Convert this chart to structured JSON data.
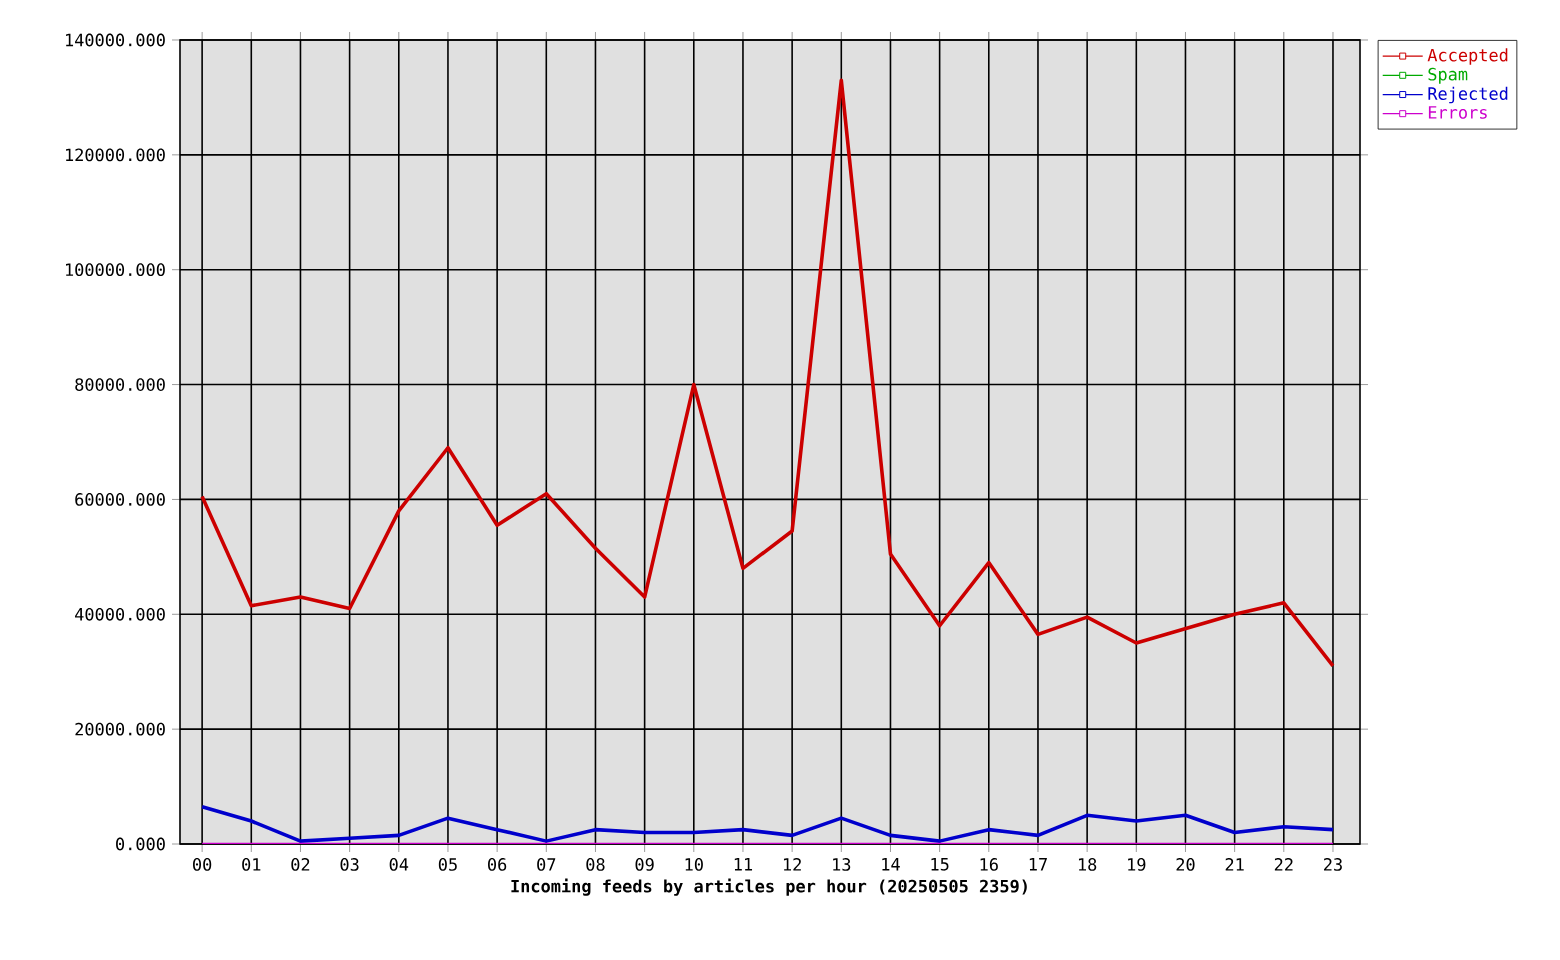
{
  "chart_data": {
    "type": "line",
    "xlabel": "Incoming feeds by articles per hour (20250505 2359)",
    "categories": [
      "00",
      "01",
      "02",
      "03",
      "04",
      "05",
      "06",
      "07",
      "08",
      "09",
      "10",
      "11",
      "12",
      "13",
      "14",
      "15",
      "16",
      "17",
      "18",
      "19",
      "20",
      "21",
      "22",
      "23"
    ],
    "series": [
      {
        "name": "Accepted",
        "color": "#cc0000",
        "values": [
          60500,
          41500,
          43000,
          41000,
          58000,
          69000,
          55500,
          61000,
          51500,
          43000,
          80000,
          48000,
          54500,
          133000,
          50500,
          38000,
          49000,
          36500,
          39500,
          35000,
          37500,
          40000,
          42000,
          31000
        ]
      },
      {
        "name": "Spam",
        "color": "#00aa00",
        "values": [
          null,
          null,
          null,
          null,
          null,
          null,
          null,
          null,
          null,
          null,
          null,
          null,
          null,
          null,
          null,
          null,
          null,
          null,
          null,
          null,
          null,
          null,
          null,
          null
        ]
      },
      {
        "name": "Rejected",
        "color": "#0000cc",
        "values": [
          6500,
          4000,
          500,
          1000,
          1500,
          4500,
          2500,
          500,
          2500,
          2000,
          2000,
          2500,
          1500,
          4500,
          1500,
          500,
          2500,
          1500,
          5000,
          4000,
          5000,
          2000,
          3000,
          2500
        ]
      },
      {
        "name": "Errors",
        "color": "#cc00cc",
        "values": [
          0,
          0,
          0,
          0,
          0,
          0,
          0,
          0,
          0,
          0,
          0,
          0,
          0,
          0,
          0,
          0,
          0,
          0,
          0,
          0,
          0,
          0,
          0,
          0
        ]
      }
    ],
    "ylim": [
      0,
      140000
    ],
    "yticks": [
      {
        "value": 0,
        "label": "0.000"
      },
      {
        "value": 20000,
        "label": "20000.000"
      },
      {
        "value": 40000,
        "label": "40000.000"
      },
      {
        "value": 60000,
        "label": "60000.000"
      },
      {
        "value": 80000,
        "label": "80000.000"
      },
      {
        "value": 100000,
        "label": "100000.000"
      },
      {
        "value": 120000,
        "label": "120000.000"
      },
      {
        "value": 140000,
        "label": "140000.000"
      }
    ],
    "grid": true,
    "legend": "top right",
    "marker": "none",
    "line_style": "solid"
  }
}
